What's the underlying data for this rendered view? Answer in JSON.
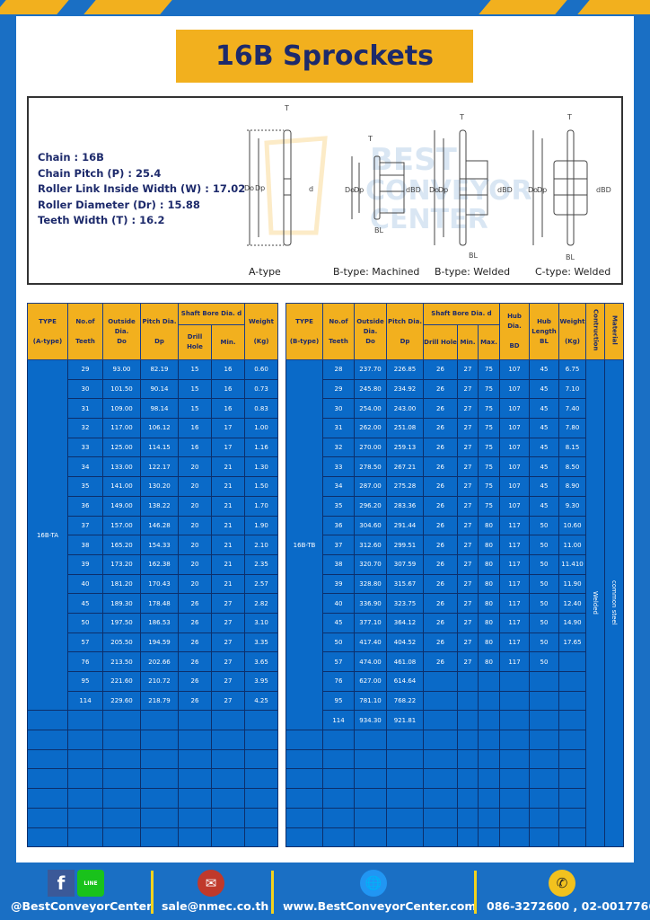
{
  "title": "16B Sprockets",
  "specs": [
    "Chain : 16B",
    "Chain Pitch (P) : 25.4",
    "Roller Link Inside Width (W) : 17.02",
    "Roller Diameter (Dr) : 15.88",
    "Teeth Width (T) : 16.2"
  ],
  "diagram_labels": [
    "A-type",
    "B-type: Machined",
    "B-type: Welded",
    "C-type: Welded"
  ],
  "table_a": {
    "headers": {
      "type": "TYPE",
      "type_sub": "(A-type)",
      "teeth": "No.of",
      "teeth_sub": "Teeth",
      "do": "Outside",
      "do_sub": "Dia.",
      "do_sub2": "Do",
      "dp": "Pitch Dia.",
      "dp_sub": "Dp",
      "bore": "Shaft Bore Dia. d",
      "drill": "Drill Hole",
      "min": "Min.",
      "weight": "Weight",
      "weight_sub": "(Kg)"
    },
    "type_value": "16B-TA",
    "rows": [
      [
        "29",
        "93.00",
        "82.19",
        "15",
        "16",
        "0.60"
      ],
      [
        "30",
        "101.50",
        "90.14",
        "15",
        "16",
        "0.73"
      ],
      [
        "31",
        "109.00",
        "98.14",
        "15",
        "16",
        "0.83"
      ],
      [
        "32",
        "117.00",
        "106.12",
        "16",
        "17",
        "1.00"
      ],
      [
        "33",
        "125.00",
        "114.15",
        "16",
        "17",
        "1.16"
      ],
      [
        "34",
        "133.00",
        "122.17",
        "20",
        "21",
        "1.30"
      ],
      [
        "35",
        "141.00",
        "130.20",
        "20",
        "21",
        "1.50"
      ],
      [
        "36",
        "149.00",
        "138.22",
        "20",
        "21",
        "1.70"
      ],
      [
        "37",
        "157.00",
        "146.28",
        "20",
        "21",
        "1.90"
      ],
      [
        "38",
        "165.20",
        "154.33",
        "20",
        "21",
        "2.10"
      ],
      [
        "39",
        "173.20",
        "162.38",
        "20",
        "21",
        "2.35"
      ],
      [
        "40",
        "181.20",
        "170.43",
        "20",
        "21",
        "2.57"
      ],
      [
        "45",
        "189.30",
        "178.48",
        "26",
        "27",
        "2.82"
      ],
      [
        "50",
        "197.50",
        "186.53",
        "26",
        "27",
        "3.10"
      ],
      [
        "57",
        "205.50",
        "194.59",
        "26",
        "27",
        "3.35"
      ],
      [
        "76",
        "213.50",
        "202.66",
        "26",
        "27",
        "3.65"
      ],
      [
        "95",
        "221.60",
        "210.72",
        "26",
        "27",
        "3.95"
      ],
      [
        "114",
        "229.60",
        "218.79",
        "26",
        "27",
        "4.25"
      ]
    ]
  },
  "table_b": {
    "headers": {
      "type": "TYPE",
      "type_sub": "(B-type)",
      "teeth": "No.of",
      "teeth_sub": "Teeth",
      "do": "Outside",
      "do_sub": "Dia.",
      "do_sub2": "Do",
      "dp": "Pitch Dia.",
      "dp_sub": "Dp",
      "bore": "Shaft Bore Dia. d",
      "drill": "Drill Hole",
      "min": "Min.",
      "max": "Max.",
      "bd": "Hub Dia.",
      "bd_sub": "BD",
      "bl": "Hub",
      "bl_sub": "Length",
      "bl_sub2": "BL",
      "weight": "Weight",
      "weight_sub": "(Kg)",
      "construction": "Contruction",
      "material": "Material"
    },
    "type_value": "16B-TB",
    "construction_value": "Welded",
    "material_value": "common steel",
    "rows": [
      [
        "28",
        "237.70",
        "226.85",
        "26",
        "27",
        "75",
        "107",
        "45",
        "6.75"
      ],
      [
        "29",
        "245.80",
        "234.92",
        "26",
        "27",
        "75",
        "107",
        "45",
        "7.10"
      ],
      [
        "30",
        "254.00",
        "243.00",
        "26",
        "27",
        "75",
        "107",
        "45",
        "7.40"
      ],
      [
        "31",
        "262.00",
        "251.08",
        "26",
        "27",
        "75",
        "107",
        "45",
        "7.80"
      ],
      [
        "32",
        "270.00",
        "259.13",
        "26",
        "27",
        "75",
        "107",
        "45",
        "8.15"
      ],
      [
        "33",
        "278.50",
        "267.21",
        "26",
        "27",
        "75",
        "107",
        "45",
        "8.50"
      ],
      [
        "34",
        "287.00",
        "275.28",
        "26",
        "27",
        "75",
        "107",
        "45",
        "8.90"
      ],
      [
        "35",
        "296.20",
        "283.36",
        "26",
        "27",
        "75",
        "107",
        "45",
        "9.30"
      ],
      [
        "36",
        "304.60",
        "291.44",
        "26",
        "27",
        "80",
        "117",
        "50",
        "10.60"
      ],
      [
        "37",
        "312.60",
        "299.51",
        "26",
        "27",
        "80",
        "117",
        "50",
        "11.00"
      ],
      [
        "38",
        "320.70",
        "307.59",
        "26",
        "27",
        "80",
        "117",
        "50",
        "11.410"
      ],
      [
        "39",
        "328.80",
        "315.67",
        "26",
        "27",
        "80",
        "117",
        "50",
        "11.90"
      ],
      [
        "40",
        "336.90",
        "323.75",
        "26",
        "27",
        "80",
        "117",
        "50",
        "12.40"
      ],
      [
        "45",
        "377.10",
        "364.12",
        "26",
        "27",
        "80",
        "117",
        "50",
        "14.90"
      ],
      [
        "50",
        "417.40",
        "404.52",
        "26",
        "27",
        "80",
        "117",
        "50",
        "17.65"
      ],
      [
        "57",
        "474.00",
        "461.08",
        "26",
        "27",
        "80",
        "117",
        "50",
        ""
      ],
      [
        "76",
        "627.00",
        "614.64",
        "",
        "",
        "",
        "",
        "",
        ""
      ],
      [
        "95",
        "781.10",
        "768.22",
        "",
        "",
        "",
        "",
        "",
        ""
      ],
      [
        "114",
        "934.30",
        "921.81",
        "",
        "",
        "",
        "",
        "",
        ""
      ]
    ]
  },
  "footer": {
    "social": "@BestConveyorCenter",
    "email": "sale@nmec.co.th",
    "website": "www.BestConveyorCenter.com",
    "phone": "086-3272600 , 02-0017766",
    "line_label": "LINE"
  },
  "colors": {
    "blue": "#1a6fc4",
    "yellow": "#f2b01e",
    "navy": "#1d2a6b",
    "cell": "#0a6ac8"
  }
}
